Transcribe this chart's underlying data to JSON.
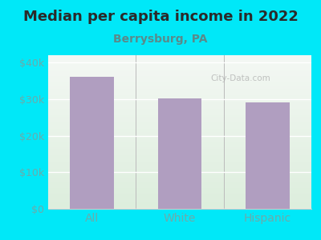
{
  "title": "Median per capita income in 2022",
  "subtitle": "Berrysburg, PA",
  "categories": [
    "All",
    "White",
    "Hispanic"
  ],
  "values": [
    36200,
    30200,
    29200
  ],
  "bar_color": "#b09ec0",
  "background_color": "#00e8f8",
  "plot_bg_color": "#eef5ec",
  "title_fontsize": 13,
  "subtitle_fontsize": 10,
  "tick_label_fontsize": 9,
  "xlabel_fontsize": 10,
  "ylim": [
    0,
    42000
  ],
  "yticks": [
    0,
    10000,
    20000,
    30000,
    40000
  ],
  "ytick_labels": [
    "$0",
    "$10k",
    "$20k",
    "$30k",
    "$40k"
  ],
  "watermark": "City-Data.com",
  "title_color": "#2a2a2a",
  "subtitle_color": "#5a8a8a",
  "tick_color": "#6aacac"
}
